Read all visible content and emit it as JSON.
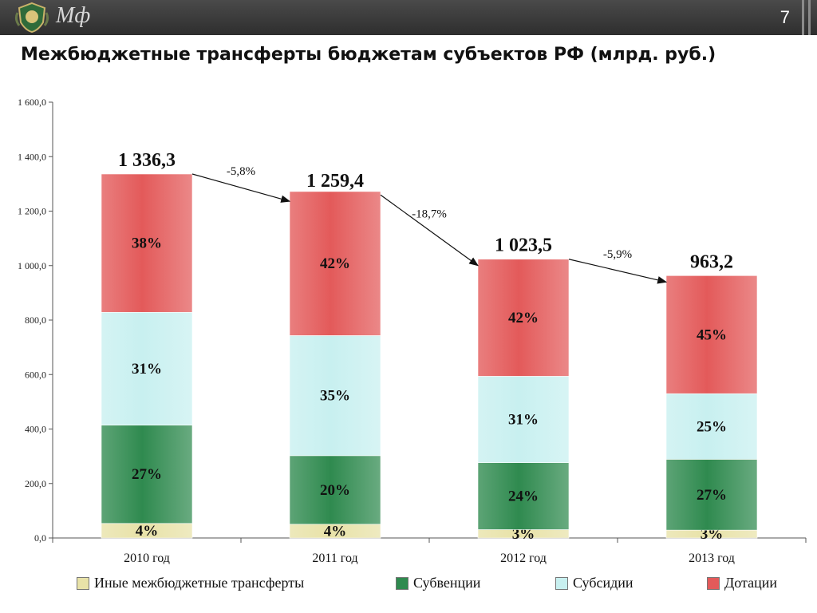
{
  "header": {
    "brand": "Мф",
    "page_number": "7"
  },
  "title": "Межбюджетные трансферты бюджетам субъектов РФ (млрд. руб.)",
  "legend": [
    {
      "label": "Иные межбюджетные трансферты",
      "color": "#e8e2a8"
    },
    {
      "label": "Субвенции",
      "color": "#2f8a4f"
    },
    {
      "label": "Субсидии",
      "color": "#c8f0f0"
    },
    {
      "label": "Дотации",
      "color": "#e35a5a"
    }
  ],
  "chart_data": {
    "type": "bar",
    "stacked": true,
    "categories": [
      "2010 год",
      "2011 год",
      "2012 год",
      "2013 год"
    ],
    "totals": [
      1336.3,
      1259.4,
      1023.5,
      963.2
    ],
    "total_labels": [
      "1 336,3",
      "1 259,4",
      "1 023,5",
      "963,2"
    ],
    "series": [
      {
        "name": "Иные межбюджетные трансферты",
        "color": "#e8e2a8",
        "percents": [
          4,
          4,
          3,
          3
        ],
        "labels": [
          "4%",
          "4%",
          "3%",
          "3%"
        ]
      },
      {
        "name": "Субвенции",
        "color": "#2f8a4f",
        "percents": [
          27,
          20,
          24,
          27
        ],
        "labels": [
          "27%",
          "20%",
          "24%",
          "27%"
        ]
      },
      {
        "name": "Субсидии",
        "color": "#c8f0f0",
        "percents": [
          31,
          35,
          31,
          25
        ],
        "labels": [
          "31%",
          "35%",
          "31%",
          "25%"
        ]
      },
      {
        "name": "Дотации",
        "color": "#e35a5a",
        "percents": [
          38,
          42,
          42,
          45
        ],
        "labels": [
          "38%",
          "42%",
          "42%",
          "45%"
        ]
      }
    ],
    "changes": [
      "-5,8%",
      "-18,7%",
      "-5,9%"
    ],
    "ylim": [
      0,
      1600
    ],
    "yticks": [
      0,
      200,
      400,
      600,
      800,
      1000,
      1200,
      1400,
      1600
    ],
    "ytick_labels": [
      "0,0",
      "200,0",
      "400,0",
      "600,0",
      "800,0",
      "1 000,0",
      "1 200,0",
      "1 400,0",
      "1 600,0"
    ]
  }
}
